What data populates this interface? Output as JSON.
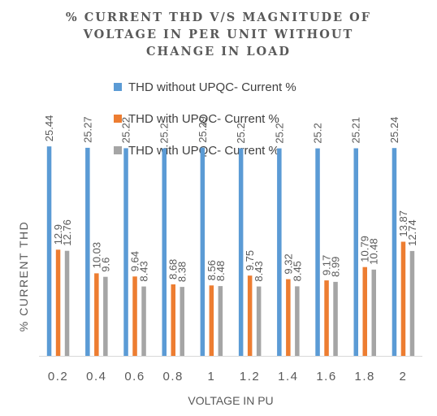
{
  "chart_data": {
    "type": "bar",
    "title_lines": [
      "% CURRENT THD V/S MAGNITUDE OF",
      "VOLTAGE IN PER UNIT WITHOUT",
      "CHANGE IN LOAD"
    ],
    "xlabel": "VOLTAGE IN PU",
    "ylabel": "% CURRENT  THD",
    "categories": [
      "0.2",
      "0.4",
      "0.6",
      "0.8",
      "1",
      "1.2",
      "1.4",
      "1.6",
      "1.8",
      "2"
    ],
    "series": [
      {
        "name": "THD without UPQC- Current %",
        "color": "#5B9BD5",
        "values": [
          25.44,
          25.27,
          25.22,
          25.2,
          25.29,
          25.2,
          25.2,
          25.2,
          25.21,
          25.24
        ],
        "labels": [
          "25.44",
          "25.27",
          "25.22",
          "25.2",
          "25.29",
          "25.2",
          "25.2",
          "25.2",
          "25.21",
          "25.24"
        ]
      },
      {
        "name": "THD with UPQC- Current %",
        "color": "#ED7D31",
        "values": [
          12.9,
          10.03,
          9.64,
          8.68,
          8.56,
          9.75,
          9.32,
          9.17,
          10.79,
          13.87
        ],
        "labels": [
          "12.9",
          "10.03",
          "9.64",
          "8.68",
          "8.56",
          "9.75",
          "9.32",
          "9.17",
          "10.79",
          "13.87"
        ]
      },
      {
        "name": "THD with UPQC- Current %",
        "color": "#A5A5A5",
        "values": [
          12.76,
          9.6,
          8.43,
          8.38,
          8.48,
          8.43,
          8.45,
          8.99,
          10.48,
          12.74
        ],
        "labels": [
          "12.76",
          "9.6",
          "8.43",
          "8.38",
          "8.48",
          "8.43",
          "8.45",
          "8.99",
          "10.48",
          "12.74"
        ]
      }
    ],
    "ylim": [
      0,
      30
    ],
    "grid": false,
    "legend_position": "top"
  }
}
